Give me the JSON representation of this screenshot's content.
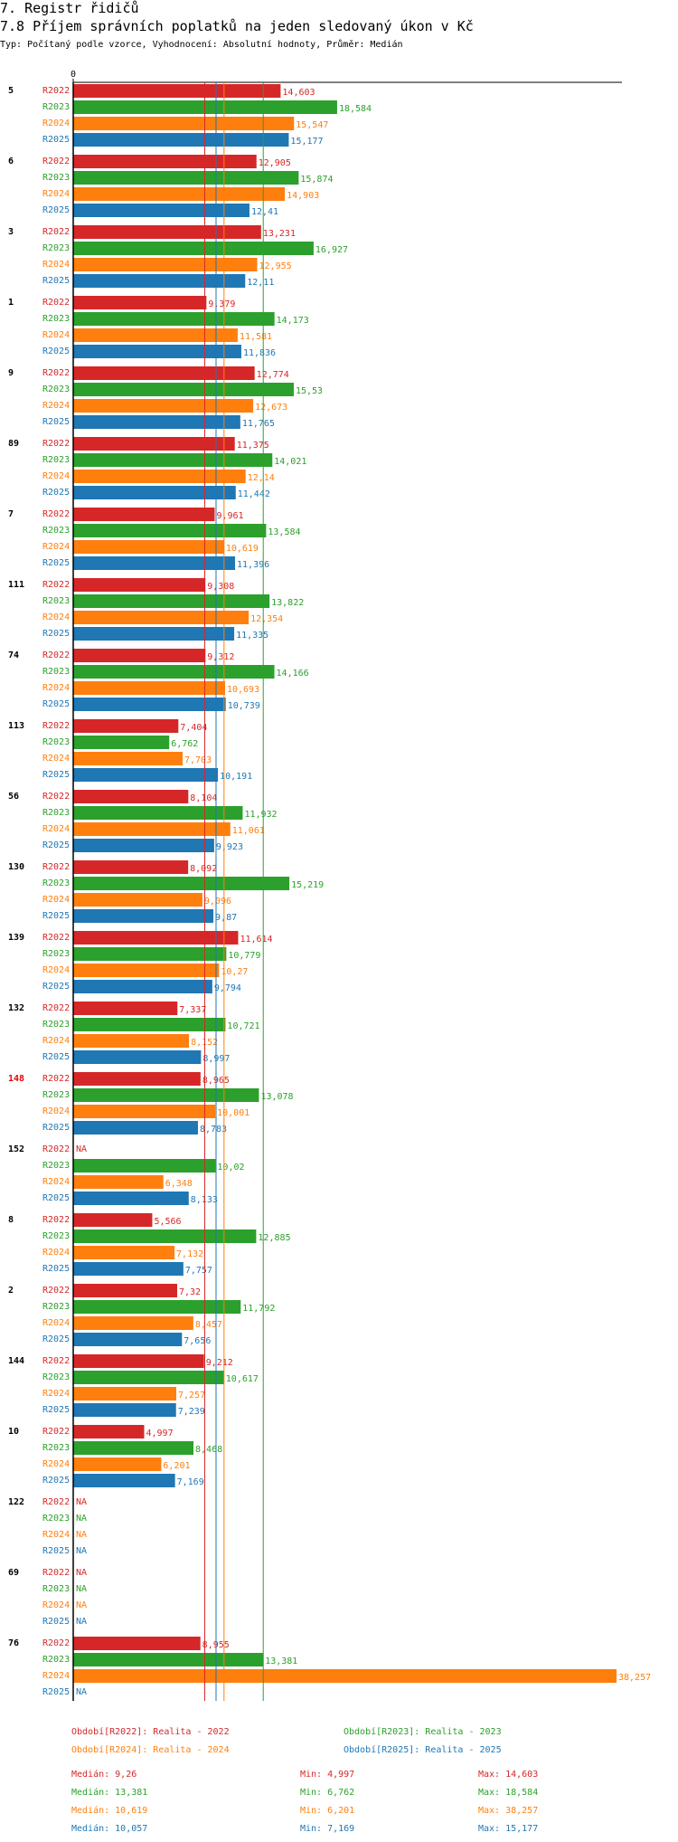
{
  "header": {
    "section_title": "7. Registr řidičů",
    "chart_title": "7.8 Příjem správních poplatků na jeden sledovaný úkon v Kč",
    "subtitle": "Typ: Počítaný podle vzorce, Vyhodnocení: Absolutní hodnoty, Průměr: Medián"
  },
  "colors": {
    "R2022": "#d62728",
    "R2023": "#2ca02c",
    "R2024": "#ff7f0e",
    "R2025": "#1f77b4",
    "highlight_group": "#e8000b"
  },
  "chart_data": {
    "type": "bar",
    "orientation": "horizontal",
    "title": "7.8 Příjem správních poplatků na jeden sledovaný úkon v Kč",
    "axis_tick_label": "0",
    "xlim": [
      0,
      38.257
    ],
    "series_names": [
      "R2022",
      "R2023",
      "R2024",
      "R2025"
    ],
    "na_label": "NA",
    "highlight_group": "148",
    "groups": [
      {
        "label": "5",
        "values": [
          14.603,
          18.584,
          15.547,
          15.177
        ],
        "texts": [
          "14,603",
          "18,584",
          "15,547",
          "15,177"
        ]
      },
      {
        "label": "6",
        "values": [
          12.905,
          15.874,
          14.903,
          12.41
        ],
        "texts": [
          "12,905",
          "15,874",
          "14,903",
          "12,41"
        ]
      },
      {
        "label": "3",
        "values": [
          13.231,
          16.927,
          12.955,
          12.11
        ],
        "texts": [
          "13,231",
          "16,927",
          "12,955",
          "12,11"
        ]
      },
      {
        "label": "1",
        "values": [
          9.379,
          14.173,
          11.581,
          11.836
        ],
        "texts": [
          "9,379",
          "14,173",
          "11,581",
          "11,836"
        ]
      },
      {
        "label": "9",
        "values": [
          12.774,
          15.53,
          12.673,
          11.765
        ],
        "texts": [
          "12,774",
          "15,53",
          "12,673",
          "11,765"
        ]
      },
      {
        "label": "89",
        "values": [
          11.375,
          14.021,
          12.14,
          11.442
        ],
        "texts": [
          "11,375",
          "14,021",
          "12,14",
          "11,442"
        ]
      },
      {
        "label": "7",
        "values": [
          9.961,
          13.584,
          10.619,
          11.396
        ],
        "texts": [
          "9,961",
          "13,584",
          "10,619",
          "11,396"
        ]
      },
      {
        "label": "111",
        "values": [
          9.308,
          13.822,
          12.354,
          11.335
        ],
        "texts": [
          "9,308",
          "13,822",
          "12,354",
          "11,335"
        ]
      },
      {
        "label": "74",
        "values": [
          9.312,
          14.166,
          10.693,
          10.739
        ],
        "texts": [
          "9,312",
          "14,166",
          "10,693",
          "10,739"
        ]
      },
      {
        "label": "113",
        "values": [
          7.404,
          6.762,
          7.703,
          10.191
        ],
        "texts": [
          "7,404",
          "6,762",
          "7,703",
          "10,191"
        ]
      },
      {
        "label": "56",
        "values": [
          8.104,
          11.932,
          11.061,
          9.923
        ],
        "texts": [
          "8,104",
          "11,932",
          "11,061",
          "9,923"
        ]
      },
      {
        "label": "130",
        "values": [
          8.092,
          15.219,
          9.096,
          9.87
        ],
        "texts": [
          "8,092",
          "15,219",
          "9,096",
          "9,87"
        ]
      },
      {
        "label": "139",
        "values": [
          11.614,
          10.779,
          10.27,
          9.794
        ],
        "texts": [
          "11,614",
          "10,779",
          "10,27",
          "9,794"
        ]
      },
      {
        "label": "132",
        "values": [
          7.337,
          10.721,
          8.152,
          8.997
        ],
        "texts": [
          "7,337",
          "10,721",
          "8,152",
          "8,997"
        ]
      },
      {
        "label": "148",
        "values": [
          8.965,
          13.078,
          10.001,
          8.783
        ],
        "texts": [
          "8,965",
          "13,078",
          "10,001",
          "8,783"
        ]
      },
      {
        "label": "152",
        "values": [
          null,
          10.02,
          6.348,
          8.133
        ],
        "texts": [
          "NA",
          "10,02",
          "6,348",
          "8,133"
        ]
      },
      {
        "label": "8",
        "values": [
          5.566,
          12.885,
          7.132,
          7.757
        ],
        "texts": [
          "5,566",
          "12,885",
          "7,132",
          "7,757"
        ]
      },
      {
        "label": "2",
        "values": [
          7.32,
          11.792,
          8.457,
          7.656
        ],
        "texts": [
          "7,32",
          "11,792",
          "8,457",
          "7,656"
        ]
      },
      {
        "label": "144",
        "values": [
          9.212,
          10.617,
          7.257,
          7.239
        ],
        "texts": [
          "9,212",
          "10,617",
          "7,257",
          "7,239"
        ]
      },
      {
        "label": "10",
        "values": [
          4.997,
          8.468,
          6.201,
          7.169
        ],
        "texts": [
          "4,997",
          "8,468",
          "6,201",
          "7,169"
        ]
      },
      {
        "label": "122",
        "values": [
          null,
          null,
          null,
          null
        ],
        "texts": [
          "NA",
          "NA",
          "NA",
          "NA"
        ]
      },
      {
        "label": "69",
        "values": [
          null,
          null,
          null,
          null
        ],
        "texts": [
          "NA",
          "NA",
          "NA",
          "NA"
        ]
      },
      {
        "label": "76",
        "values": [
          8.955,
          13.381,
          38.257,
          null
        ],
        "texts": [
          "8,955",
          "13,381",
          "38,257",
          "NA"
        ]
      }
    ],
    "median_lines": [
      9.26,
      13.381,
      10.619,
      10.057
    ]
  },
  "legend": [
    {
      "series": "R2022",
      "label": "Období[R2022]: Realita - 2022"
    },
    {
      "series": "R2023",
      "label": "Období[R2023]: Realita - 2023"
    },
    {
      "series": "R2024",
      "label": "Období[R2024]: Realita - 2024"
    },
    {
      "series": "R2025",
      "label": "Období[R2025]: Realita - 2025"
    }
  ],
  "stats": [
    {
      "series": "R2022",
      "median": "Medián: 9,26",
      "min": "Min: 4,997",
      "max": "Max: 14,603"
    },
    {
      "series": "R2023",
      "median": "Medián: 13,381",
      "min": "Min: 6,762",
      "max": "Max: 18,584"
    },
    {
      "series": "R2024",
      "median": "Medián: 10,619",
      "min": "Min: 6,201",
      "max": "Max: 38,257"
    },
    {
      "series": "R2025",
      "median": "Medián: 10,057",
      "min": "Min: 7,169",
      "max": "Max: 15,177"
    }
  ]
}
